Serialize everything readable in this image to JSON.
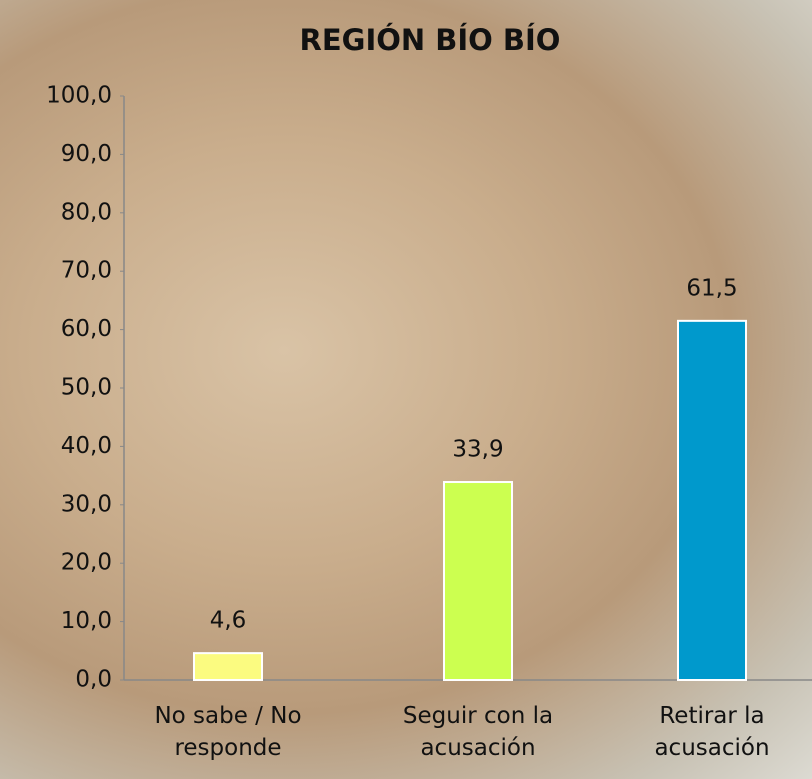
{
  "chart_data": {
    "type": "bar",
    "title": "REGIÓN BÍO BÍO",
    "categories": [
      "No sabe / No responde",
      "Seguir con la acusación",
      "Retirar la acusación"
    ],
    "values": [
      4.6,
      33.9,
      61.5
    ],
    "value_labels": [
      "4,6",
      "33,9",
      "61,5"
    ],
    "colors": [
      "#fbfb80",
      "#ccff50",
      "#0099cc"
    ],
    "ylim": [
      0,
      100
    ],
    "yticks": [
      {
        "value": 0,
        "label": "0,0"
      },
      {
        "value": 10,
        "label": "10,0"
      },
      {
        "value": 20,
        "label": "20,0"
      },
      {
        "value": 30,
        "label": "30,0"
      },
      {
        "value": 40,
        "label": "40,0"
      },
      {
        "value": 50,
        "label": "50,0"
      },
      {
        "value": 60,
        "label": "60,0"
      },
      {
        "value": 70,
        "label": "70,0"
      },
      {
        "value": 80,
        "label": "80,0"
      },
      {
        "value": 90,
        "label": "90,0"
      },
      {
        "value": 100,
        "label": "100,0"
      }
    ]
  }
}
